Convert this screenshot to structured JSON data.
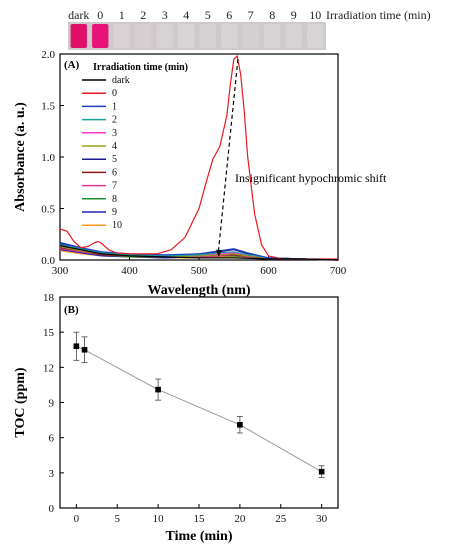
{
  "strip": {
    "labels": [
      "dark",
      "0",
      "1",
      "2",
      "3",
      "4",
      "5",
      "6",
      "7",
      "8",
      "9",
      "10"
    ],
    "title": "Irradiation time (min)",
    "colors": [
      "#e0106a",
      "#e8137a",
      "#d9d2d5",
      "#d6d0d3",
      "#d7d3d4",
      "#d9d5d6",
      "#d6d2d3",
      "#d8d4d5",
      "#d5d1d3",
      "#d7d3d4",
      "#d6d3d4",
      "#d8d5d6"
    ]
  },
  "chart_data": [
    {
      "type": "line",
      "panel_label": "(A)",
      "xlabel": "Wavelength (nm)",
      "ylabel": "Absorbance (a. u.)",
      "xlim": [
        300,
        700
      ],
      "ylim": [
        0,
        2.0
      ],
      "xticks": [
        "300",
        "400",
        "500",
        "600",
        "700"
      ],
      "yticks": [
        "0.0",
        "0.5",
        "1.0",
        "1.5",
        "2.0"
      ],
      "legend_title": "Irradiation time (min)",
      "legend_position": "top-left",
      "annotation": "Insignificant hypochromic shift",
      "series": [
        {
          "name": "dark",
          "color": "#000000",
          "x": [
            300,
            330,
            360,
            400,
            450,
            500,
            550,
            600,
            650,
            700
          ],
          "y": [
            0.14,
            0.1,
            0.06,
            0.04,
            0.03,
            0.02,
            0.02,
            0.01,
            0.01,
            0.0
          ]
        },
        {
          "name": "0",
          "color": "#e8191e",
          "x": [
            300,
            310,
            320,
            330,
            340,
            350,
            355,
            360,
            370,
            380,
            400,
            420,
            440,
            460,
            480,
            500,
            510,
            520,
            530,
            540,
            545,
            550,
            555,
            560,
            565,
            570,
            580,
            590,
            600,
            620,
            650,
            700
          ],
          "y": [
            0.3,
            0.28,
            0.18,
            0.12,
            0.13,
            0.17,
            0.18,
            0.16,
            0.1,
            0.07,
            0.06,
            0.06,
            0.06,
            0.1,
            0.22,
            0.5,
            0.75,
            0.98,
            1.1,
            1.4,
            1.7,
            1.95,
            1.98,
            1.8,
            1.45,
            1.0,
            0.45,
            0.15,
            0.04,
            0.01,
            0.01,
            0.01
          ]
        },
        {
          "name": "1",
          "color": "#1f3fbf",
          "x": [
            300,
            330,
            360,
            400,
            450,
            500,
            530,
            550,
            570,
            600,
            650,
            700
          ],
          "y": [
            0.17,
            0.12,
            0.08,
            0.06,
            0.05,
            0.06,
            0.09,
            0.11,
            0.07,
            0.02,
            0.01,
            0.0
          ]
        },
        {
          "name": "2",
          "color": "#1aa39a",
          "x": [
            300,
            330,
            360,
            400,
            450,
            500,
            530,
            550,
            570,
            600,
            650,
            700
          ],
          "y": [
            0.15,
            0.11,
            0.07,
            0.05,
            0.04,
            0.05,
            0.07,
            0.08,
            0.05,
            0.02,
            0.01,
            0.0
          ]
        },
        {
          "name": "3",
          "color": "#ff33cc",
          "x": [
            300,
            330,
            360,
            400,
            450,
            500,
            530,
            550,
            570,
            600,
            650,
            700
          ],
          "y": [
            0.14,
            0.1,
            0.06,
            0.05,
            0.04,
            0.05,
            0.06,
            0.07,
            0.05,
            0.02,
            0.01,
            0.0
          ]
        },
        {
          "name": "4",
          "color": "#99a31a",
          "x": [
            300,
            330,
            360,
            400,
            450,
            500,
            530,
            550,
            570,
            600,
            650,
            700
          ],
          "y": [
            0.13,
            0.09,
            0.06,
            0.04,
            0.03,
            0.04,
            0.05,
            0.06,
            0.04,
            0.02,
            0.01,
            0.0
          ]
        },
        {
          "name": "5",
          "color": "#1a1a99",
          "x": [
            300,
            330,
            360,
            400,
            450,
            500,
            530,
            550,
            570,
            600,
            650,
            700
          ],
          "y": [
            0.16,
            0.11,
            0.07,
            0.05,
            0.04,
            0.06,
            0.08,
            0.1,
            0.06,
            0.02,
            0.01,
            0.0
          ]
        },
        {
          "name": "6",
          "color": "#8b1a1a",
          "x": [
            300,
            330,
            360,
            400,
            450,
            500,
            530,
            550,
            570,
            600,
            650,
            700
          ],
          "y": [
            0.12,
            0.09,
            0.05,
            0.04,
            0.03,
            0.04,
            0.05,
            0.05,
            0.04,
            0.01,
            0.01,
            0.0
          ]
        },
        {
          "name": "7",
          "color": "#e0338f",
          "x": [
            300,
            330,
            360,
            400,
            450,
            500,
            530,
            550,
            570,
            600,
            650,
            700
          ],
          "y": [
            0.11,
            0.08,
            0.05,
            0.04,
            0.03,
            0.03,
            0.04,
            0.05,
            0.03,
            0.01,
            0.01,
            0.0
          ]
        },
        {
          "name": "8",
          "color": "#1f8f2a",
          "x": [
            300,
            330,
            360,
            400,
            450,
            500,
            530,
            550,
            570,
            600,
            650,
            700
          ],
          "y": [
            0.11,
            0.08,
            0.05,
            0.03,
            0.03,
            0.03,
            0.04,
            0.04,
            0.03,
            0.01,
            0.01,
            0.0
          ]
        },
        {
          "name": "9",
          "color": "#2323b3",
          "x": [
            300,
            330,
            360,
            400,
            450,
            500,
            530,
            550,
            570,
            600,
            650,
            700
          ],
          "y": [
            0.1,
            0.07,
            0.04,
            0.03,
            0.02,
            0.03,
            0.04,
            0.04,
            0.03,
            0.01,
            0.01,
            0.0
          ]
        },
        {
          "name": "10",
          "color": "#ff9922",
          "x": [
            300,
            330,
            360,
            400,
            450,
            500,
            530,
            550,
            570,
            600,
            650,
            700
          ],
          "y": [
            0.09,
            0.06,
            0.04,
            0.03,
            0.02,
            0.02,
            0.03,
            0.03,
            0.02,
            0.01,
            0.01,
            0.0
          ]
        }
      ]
    },
    {
      "type": "line",
      "panel_label": "(B)",
      "xlabel": "Time (min)",
      "ylabel": "TOC (ppm)",
      "xlim": [
        -2,
        32
      ],
      "ylim": [
        0,
        18
      ],
      "xticks": [
        "0",
        "5",
        "10",
        "15",
        "20",
        "25",
        "30"
      ],
      "xtick_values": [
        0,
        5,
        10,
        15,
        20,
        25,
        30
      ],
      "yticks": [
        "0",
        "3",
        "6",
        "9",
        "12",
        "15",
        "18"
      ],
      "ytick_values": [
        0,
        3,
        6,
        9,
        12,
        15,
        18
      ],
      "series": [
        {
          "name": "",
          "color": "#000000",
          "line_color": "#999999",
          "x": [
            0,
            1,
            10,
            20,
            30
          ],
          "y": [
            13.8,
            13.5,
            10.1,
            7.1,
            3.1
          ],
          "error": [
            1.2,
            1.1,
            0.9,
            0.7,
            0.5
          ]
        }
      ]
    }
  ]
}
